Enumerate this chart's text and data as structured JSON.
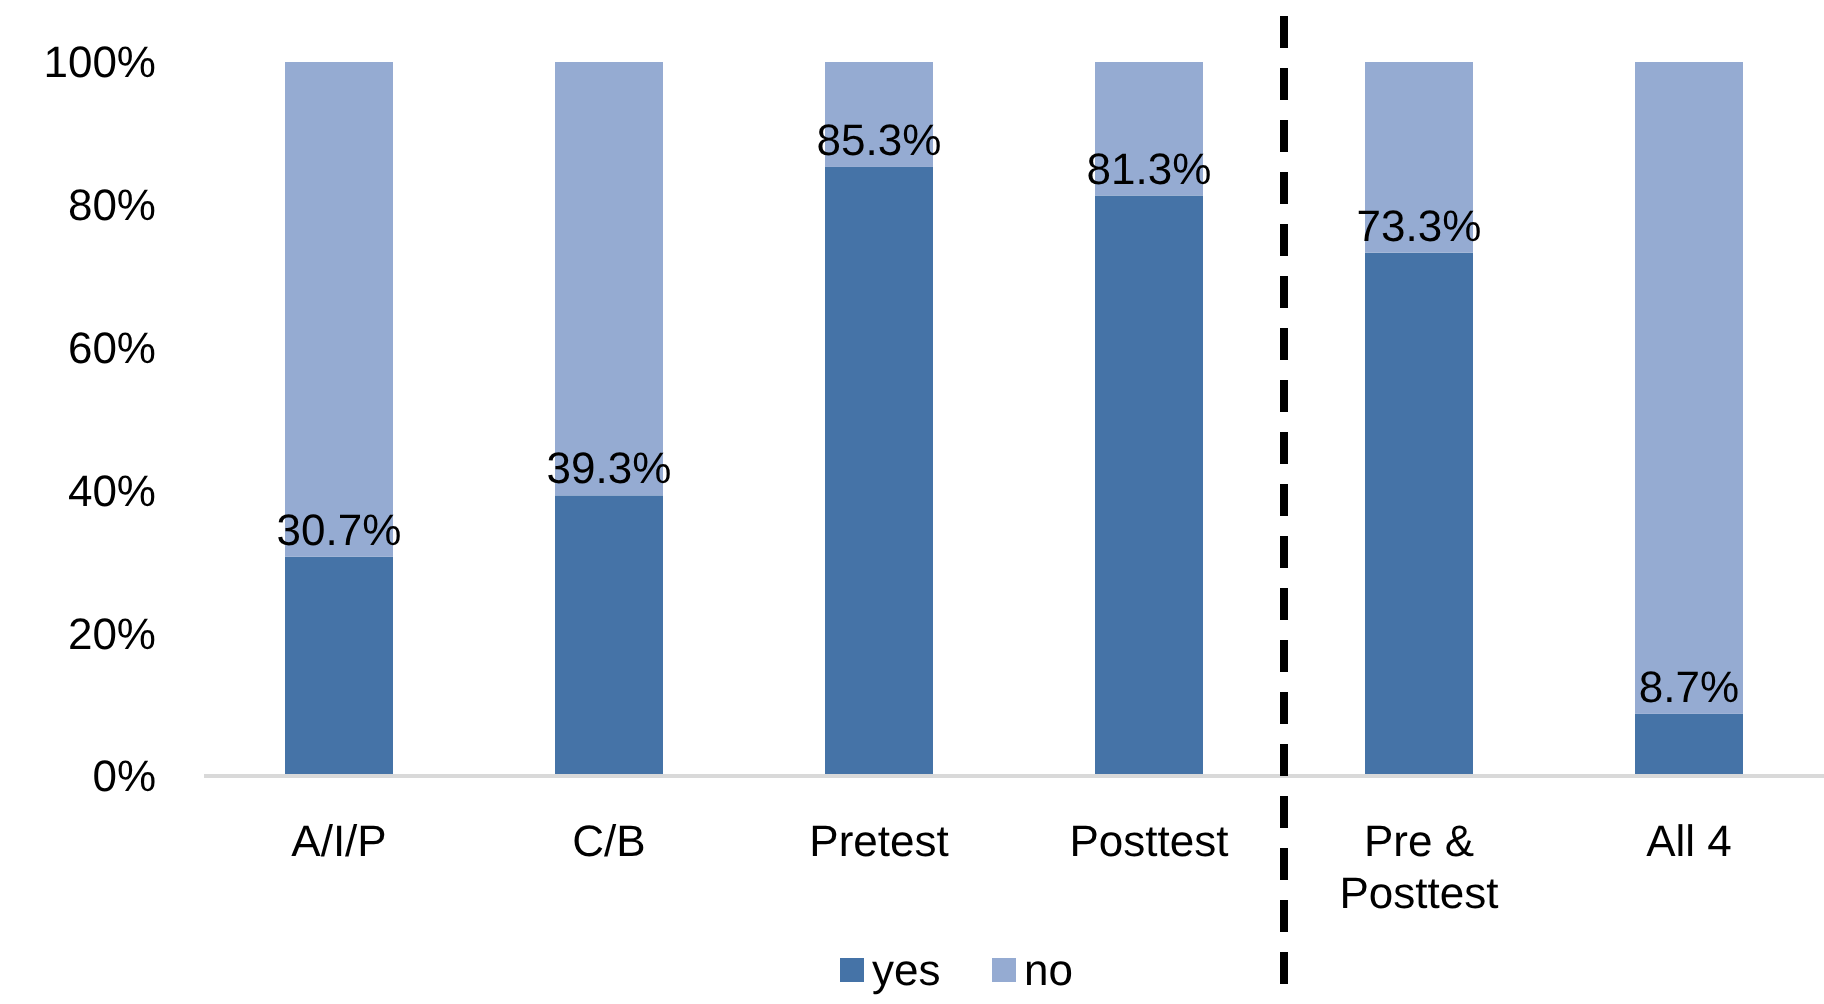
{
  "chart_data": {
    "type": "bar",
    "stacked": true,
    "categories": [
      "A/I/P",
      "C/B",
      "Pretest",
      "Posttest",
      "Pre & Posttest",
      "All 4"
    ],
    "series": [
      {
        "name": "yes",
        "color": "#4573a7",
        "values": [
          30.7,
          39.3,
          85.3,
          81.3,
          73.3,
          8.7
        ],
        "value_labels": [
          "30.7%",
          "39.3%",
          "85.3%",
          "81.3%",
          "73.3%",
          "8.7%"
        ]
      },
      {
        "name": "no",
        "color": "#95abd2",
        "values": [
          69.3,
          60.7,
          14.7,
          18.7,
          26.7,
          91.3
        ]
      }
    ],
    "ylim": [
      0,
      100
    ],
    "yticks": [
      {
        "value": 0,
        "label": "0%"
      },
      {
        "value": 20,
        "label": "20%"
      },
      {
        "value": 40,
        "label": "40%"
      },
      {
        "value": 60,
        "label": "60%"
      },
      {
        "value": 80,
        "label": "80%"
      },
      {
        "value": 100,
        "label": "100%"
      }
    ],
    "grid": false,
    "legend": "bottom"
  }
}
